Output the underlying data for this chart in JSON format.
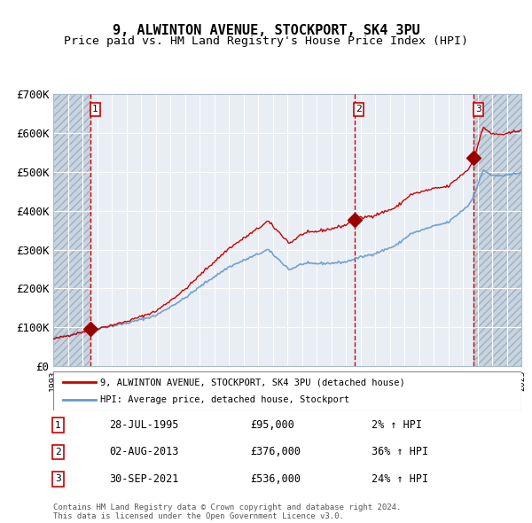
{
  "title": "9, ALWINTON AVENUE, STOCKPORT, SK4 3PU",
  "subtitle": "Price paid vs. HM Land Registry's House Price Index (HPI)",
  "purchases": [
    {
      "date": "1995-07-28",
      "price": 95000,
      "label": "1"
    },
    {
      "date": "2013-08-02",
      "price": 376000,
      "label": "2"
    },
    {
      "date": "2021-09-30",
      "price": 536000,
      "label": "3"
    }
  ],
  "purchase_labels": [
    "28-JUL-1995",
    "02-AUG-2013",
    "30-SEP-2021"
  ],
  "purchase_prices_str": [
    "£95,000",
    "£376,000",
    "£536,000"
  ],
  "purchase_hpi_str": [
    "2% ↑ HPI",
    "36% ↑ HPI",
    "24% ↑ HPI"
  ],
  "legend_property": "9, ALWINTON AVENUE, STOCKPORT, SK4 3PU (detached house)",
  "legend_hpi": "HPI: Average price, detached house, Stockport",
  "footer": "Contains HM Land Registry data © Crown copyright and database right 2024.\nThis data is licensed under the Open Government Licence v3.0.",
  "ylim": [
    0,
    700000
  ],
  "yticks": [
    0,
    100000,
    200000,
    300000,
    400000,
    500000,
    600000,
    700000
  ],
  "ytick_labels": [
    "£0",
    "£100K",
    "£200K",
    "£300K",
    "£400K",
    "£500K",
    "£600K",
    "£700K"
  ],
  "hpi_color": "#6699CC",
  "property_color": "#CC0000",
  "dashed_line_color": "#CC0000",
  "marker_color": "#990000",
  "background_color": "#E8EEF4",
  "hatch_color": "#C8D4E0",
  "grid_color": "#FFFFFF",
  "border_color": "#AABBCC"
}
